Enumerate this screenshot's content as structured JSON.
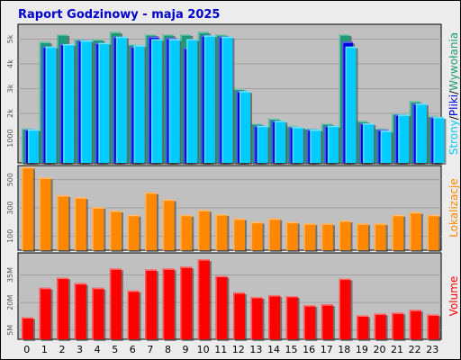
{
  "title": "Raport Godzinowy - maja 2025",
  "colors": {
    "title": "#0000cc",
    "plot_bg": "#c0c0c0",
    "grid": "#a0a0a0",
    "hits": "#1e9a7a",
    "files": "#0000dd",
    "pages": "#00ccff",
    "visits": "#ff8800",
    "volume": "#ff0000"
  },
  "chart_data": [
    {
      "type": "bar",
      "name": "hits-files-pages",
      "categories": [
        "0",
        "1",
        "2",
        "3",
        "4",
        "5",
        "6",
        "7",
        "8",
        "9",
        "10",
        "11",
        "12",
        "13",
        "14",
        "15",
        "16",
        "17",
        "18",
        "19",
        "20",
        "21",
        "22",
        "23"
      ],
      "ylim": [
        0,
        5600
      ],
      "ytick_labels": [
        {
          "value": 1000,
          "label": "1000"
        },
        {
          "value": 2000,
          "label": "2k"
        },
        {
          "value": 3000,
          "label": "3k"
        },
        {
          "value": 4000,
          "label": "4k"
        },
        {
          "value": 5000,
          "label": "5k"
        }
      ],
      "grid": true,
      "side_label": [
        {
          "text": "Wywołania",
          "color_key": "hits"
        },
        {
          "text": "/",
          "color_key": "black"
        },
        {
          "text": "Pliki",
          "color_key": "files"
        },
        {
          "text": "/",
          "color_key": "black"
        },
        {
          "text": "Strony",
          "color_key": "pages"
        }
      ],
      "series": [
        {
          "key": "hits",
          "values": [
            1400,
            4900,
            5200,
            5000,
            5000,
            5300,
            4800,
            5200,
            5200,
            5200,
            5300,
            5200,
            3000,
            1600,
            1800,
            1500,
            1400,
            1600,
            5200,
            1700,
            1400,
            2000,
            2500,
            1900
          ]
        },
        {
          "key": "files",
          "values": [
            1350,
            4700,
            4800,
            4950,
            4850,
            5100,
            4700,
            5100,
            5050,
            4650,
            5150,
            5100,
            2900,
            1500,
            1700,
            1450,
            1350,
            1500,
            4900,
            1600,
            1350,
            1950,
            2400,
            1850
          ]
        },
        {
          "key": "pages",
          "values": [
            1350,
            4700,
            4800,
            4950,
            4850,
            5100,
            4750,
            5000,
            5000,
            5000,
            5150,
            5100,
            2900,
            1500,
            1700,
            1450,
            1350,
            1500,
            4700,
            1600,
            1300,
            1950,
            2400,
            1850
          ]
        }
      ]
    },
    {
      "type": "bar",
      "name": "visits",
      "ylim": [
        0,
        600
      ],
      "ytick_labels": [
        {
          "value": 100,
          "label": "100"
        },
        {
          "value": 300,
          "label": "300"
        },
        {
          "value": 500,
          "label": "500"
        }
      ],
      "grid": true,
      "side_label": [
        {
          "text": "Lokalizacje",
          "color_key": "visits"
        }
      ],
      "series": [
        {
          "key": "visits",
          "values": [
            590,
            515,
            390,
            375,
            305,
            280,
            250,
            410,
            360,
            250,
            285,
            255,
            225,
            200,
            225,
            200,
            190,
            190,
            210,
            190,
            190,
            250,
            270,
            250
          ]
        }
      ]
    },
    {
      "type": "bar",
      "name": "volume",
      "ylim": [
        0,
        47
      ],
      "ytick_labels": [
        {
          "value": 5,
          "label": "5M"
        },
        {
          "value": 20,
          "label": "20M"
        },
        {
          "value": 35,
          "label": "35M"
        }
      ],
      "grid": true,
      "side_label": [
        {
          "text": "Volume",
          "color_key": "volume"
        }
      ],
      "series": [
        {
          "key": "volume",
          "values": [
            12.0,
            28.0,
            33.5,
            30.5,
            28.0,
            38.5,
            26.5,
            38.0,
            38.5,
            39.5,
            43.5,
            34.5,
            25.5,
            23.0,
            24.0,
            23.5,
            18.5,
            19.0,
            33.0,
            13.0,
            14.0,
            14.5,
            16.0,
            13.5
          ]
        }
      ]
    }
  ]
}
